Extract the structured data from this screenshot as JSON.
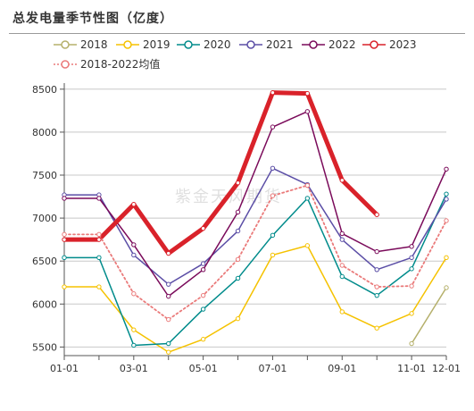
{
  "title": "总发电量季节性图（亿度）",
  "watermark": "紫金天风期货",
  "chart_data": {
    "type": "line",
    "title": "总发电量季节性图（亿度）",
    "categories": [
      "01-01",
      "02-01",
      "03-01",
      "04-01",
      "05-01",
      "06-01",
      "07-01",
      "08-01",
      "09-01",
      "10-01",
      "11-01",
      "12-01"
    ],
    "x_ticks": [
      "01-01",
      "03-01",
      "05-01",
      "07-01",
      "09-01",
      "11-01",
      "12-01"
    ],
    "ylim": [
      5400,
      8550
    ],
    "y_ticks": [
      5500,
      6000,
      6500,
      7000,
      7500,
      8000,
      8500
    ],
    "grid": true,
    "legend": "top",
    "series": [
      {
        "name": "2018",
        "color": "#b5b06b",
        "style": "solid",
        "width": 1.5,
        "values": [
          null,
          null,
          null,
          null,
          null,
          null,
          null,
          null,
          null,
          null,
          5540,
          6190
        ]
      },
      {
        "name": "2019",
        "color": "#f5c200",
        "style": "solid",
        "width": 1.5,
        "values": [
          6200,
          6200,
          5700,
          5440,
          5590,
          5830,
          6570,
          6680,
          5910,
          5720,
          5890,
          6540
        ]
      },
      {
        "name": "2020",
        "color": "#008b8b",
        "style": "solid",
        "width": 1.5,
        "values": [
          6540,
          6540,
          5520,
          5540,
          5940,
          6300,
          6800,
          7230,
          6320,
          6100,
          6410,
          7280
        ]
      },
      {
        "name": "2021",
        "color": "#5b4ea6",
        "style": "solid",
        "width": 1.5,
        "values": [
          7270,
          7270,
          6570,
          6230,
          6470,
          6850,
          7580,
          7390,
          6750,
          6400,
          6540,
          7220
        ]
      },
      {
        "name": "2022",
        "color": "#7a0a5a",
        "style": "solid",
        "width": 1.5,
        "values": [
          7230,
          7230,
          6690,
          6090,
          6400,
          7070,
          8060,
          8240,
          6820,
          6610,
          6670,
          7570
        ]
      },
      {
        "name": "2023",
        "color": "#d9222a",
        "style": "solid",
        "width": 5,
        "values": [
          6750,
          6750,
          7160,
          6590,
          6880,
          7410,
          8460,
          8450,
          7440,
          7040,
          null,
          null
        ]
      },
      {
        "name": "2018-2022均值",
        "color": "#ea7a7a",
        "style": "dotted",
        "width": 1.8,
        "values": [
          6810,
          6810,
          6120,
          5820,
          6100,
          6520,
          7260,
          7380,
          6450,
          6200,
          6210,
          6970
        ]
      }
    ]
  }
}
